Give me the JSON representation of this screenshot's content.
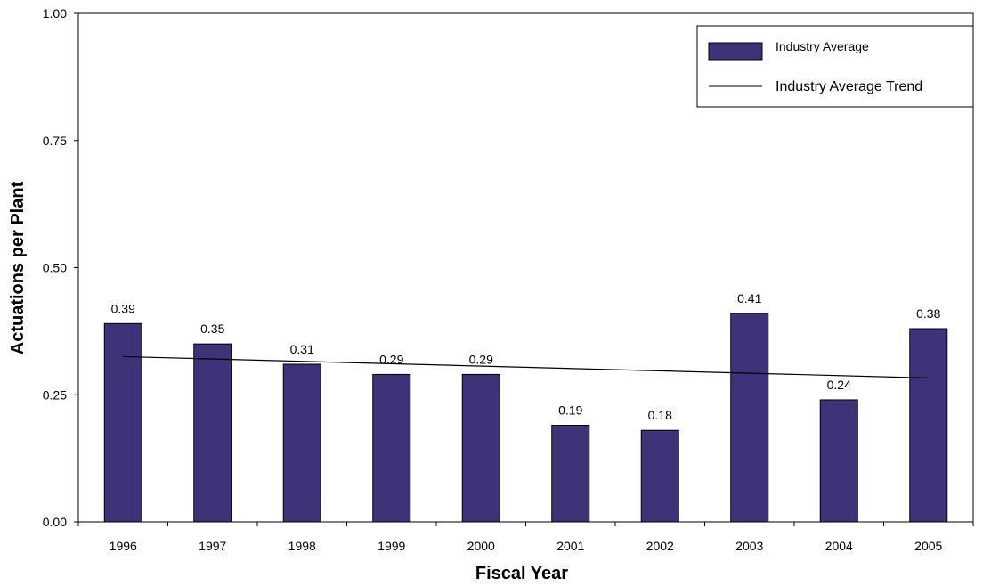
{
  "chart_data": {
    "type": "bar",
    "title": "",
    "xlabel": "Fiscal Year",
    "ylabel": "Actuations per Plant",
    "categories": [
      "1996",
      "1997",
      "1998",
      "1999",
      "2000",
      "2001",
      "2002",
      "2003",
      "2004",
      "2005"
    ],
    "series": [
      {
        "name": "Industry Average",
        "type": "bar",
        "color": "#3f3278",
        "values": [
          0.39,
          0.35,
          0.31,
          0.29,
          0.29,
          0.19,
          0.18,
          0.41,
          0.24,
          0.38
        ],
        "value_labels": [
          "0.39",
          "0.35",
          "0.31",
          "0.29",
          "0.29",
          "0.19",
          "0.18",
          "0.41",
          "0.24",
          "0.38"
        ]
      },
      {
        "name": "Industry Average Trend",
        "type": "line",
        "color": "#000000",
        "start": 0.325,
        "end": 0.283
      }
    ],
    "ylim": [
      0,
      1
    ],
    "yticks": [
      0,
      0.25,
      0.5,
      0.75,
      1
    ],
    "ytick_labels": [
      "0.00",
      "0.25",
      "0.50",
      "0.75",
      "1.00"
    ],
    "grid": false,
    "legend_position": "top-right"
  }
}
